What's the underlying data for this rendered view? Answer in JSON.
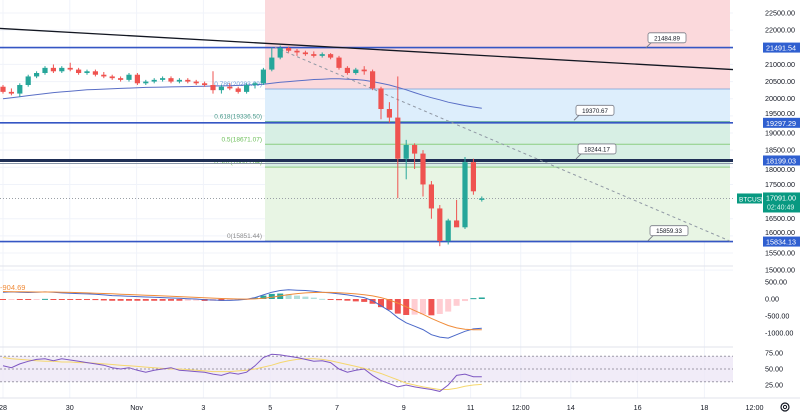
{
  "chart_data": {
    "type": "candlestick",
    "symbol": "BTCUSD",
    "last_price": "17091.00",
    "countdown": "02:40:49",
    "price_axis": {
      "ylim": [
        15500,
        22500
      ],
      "ticks": [
        "22500.00",
        "22000.00",
        "21000.00",
        "20500.00",
        "20000.00",
        "19500.00",
        "19000.00",
        "18500.00",
        "18000.00",
        "17500.00",
        "16500.00",
        "16000.00",
        "15500.00",
        "15000.00"
      ]
    },
    "time_axis": {
      "ticks": [
        {
          "label": "28",
          "t": "2022-10-28T00:00"
        },
        {
          "label": "30",
          "t": "2022-10-30T00:00"
        },
        {
          "label": "Nov",
          "t": "2022-11-01T00:00"
        },
        {
          "label": "3",
          "t": "2022-11-03T00:00"
        },
        {
          "label": "5",
          "t": "2022-11-05T00:00"
        },
        {
          "label": "7",
          "t": "2022-11-07T00:00"
        },
        {
          "label": "9",
          "t": "2022-11-09T00:00"
        },
        {
          "label": "11",
          "t": "2022-11-11T00:00"
        },
        {
          "label": "12:00",
          "t": "2022-11-12T12:00"
        },
        {
          "label": "14",
          "t": "2022-11-14T00:00"
        },
        {
          "label": "16",
          "t": "2022-11-16T00:00"
        },
        {
          "label": "18",
          "t": "2022-11-18T00:00"
        },
        {
          "label": "12:00",
          "t": "2022-11-19T12:00"
        }
      ]
    },
    "candles_ohlc": [
      [
        20350,
        20400,
        20150,
        20200
      ],
      [
        20200,
        20300,
        20100,
        20150
      ],
      [
        20150,
        20450,
        20050,
        20400
      ],
      [
        20400,
        20700,
        20350,
        20650
      ],
      [
        20650,
        20800,
        20600,
        20750
      ],
      [
        20750,
        20950,
        20700,
        20900
      ],
      [
        20900,
        21000,
        20750,
        20800
      ],
      [
        20800,
        20950,
        20750,
        20900
      ],
      [
        20900,
        21050,
        20800,
        20850
      ],
      [
        20850,
        20900,
        20700,
        20750
      ],
      [
        20750,
        20850,
        20700,
        20800
      ],
      [
        20800,
        20850,
        20650,
        20700
      ],
      [
        20700,
        20780,
        20600,
        20650
      ],
      [
        20650,
        20700,
        20550,
        20600
      ],
      [
        20600,
        20650,
        20500,
        20550
      ],
      [
        20550,
        20750,
        20500,
        20700
      ],
      [
        20700,
        20750,
        20400,
        20450
      ],
      [
        20450,
        20550,
        20400,
        20500
      ],
      [
        20500,
        20600,
        20450,
        20550
      ],
      [
        20550,
        20650,
        20500,
        20600
      ],
      [
        20600,
        20650,
        20450,
        20500
      ],
      [
        20500,
        20600,
        20450,
        20550
      ],
      [
        20550,
        20600,
        20450,
        20500
      ],
      [
        20500,
        20550,
        20400,
        20450
      ],
      [
        20450,
        20500,
        20350,
        20400
      ],
      [
        20400,
        20800,
        20150,
        20250
      ],
      [
        20250,
        20400,
        20150,
        20350
      ],
      [
        20350,
        20450,
        20250,
        20300
      ],
      [
        20300,
        20350,
        20150,
        20200
      ],
      [
        20200,
        20450,
        20150,
        20400
      ],
      [
        20400,
        20500,
        20300,
        20450
      ],
      [
        20450,
        20900,
        20400,
        20850
      ],
      [
        20850,
        21500,
        20800,
        21200
      ],
      [
        21200,
        21550,
        21150,
        21480
      ],
      [
        21480,
        21520,
        21350,
        21400
      ],
      [
        21400,
        21450,
        21250,
        21350
      ],
      [
        21350,
        21400,
        21250,
        21300
      ],
      [
        21300,
        21380,
        21200,
        21250
      ],
      [
        21250,
        21350,
        21200,
        21300
      ],
      [
        21300,
        21330,
        21150,
        21200
      ],
      [
        21200,
        21250,
        20850,
        20900
      ],
      [
        20900,
        20950,
        20700,
        20750
      ],
      [
        20750,
        20900,
        20700,
        20850
      ],
      [
        20850,
        20950,
        20700,
        20800
      ],
      [
        20800,
        20850,
        20250,
        20300
      ],
      [
        20300,
        20350,
        19400,
        19700
      ],
      [
        19700,
        19900,
        19300,
        19450
      ],
      [
        19450,
        20650,
        17100,
        18250
      ],
      [
        18250,
        18800,
        17650,
        18650
      ],
      [
        18650,
        18700,
        17950,
        18400
      ],
      [
        18400,
        18500,
        17150,
        17500
      ],
      [
        17500,
        17600,
        16500,
        16800
      ],
      [
        16800,
        16900,
        15700,
        15850
      ],
      [
        15850,
        16500,
        15750,
        16450
      ],
      [
        16450,
        17050,
        16300,
        16250
      ],
      [
        16250,
        18300,
        16200,
        18150
      ],
      [
        18150,
        18250,
        17200,
        17300
      ],
      [
        17050,
        17150,
        17000,
        17091
      ]
    ],
    "moving_average": [
      20000,
      20030,
      20060,
      20090,
      20120,
      20150,
      20180,
      20200,
      20220,
      20240,
      20260,
      20270,
      20280,
      20290,
      20300,
      20310,
      20320,
      20330,
      20335,
      20340,
      20345,
      20350,
      20355,
      20360,
      20365,
      20370,
      20375,
      20380,
      20390,
      20400,
      20410,
      20420,
      20450,
      20480,
      20500,
      20520,
      20540,
      20560,
      20570,
      20580,
      20580,
      20570,
      20560,
      20540,
      20500,
      20450,
      20400,
      20330,
      20260,
      20180,
      20100,
      20030,
      19970,
      19900,
      19850,
      19800,
      19760,
      19720
    ],
    "horizontal_levels": [
      {
        "price": 21491.54,
        "label": "21491.54"
      },
      {
        "price": 19297.29,
        "label": "19297.29"
      },
      {
        "price": 18199.03,
        "label": "18199.03"
      },
      {
        "price": 15834.13,
        "label": "15834.13"
      }
    ],
    "callouts": [
      {
        "price": 21484.89,
        "label": "21484.89"
      },
      {
        "price": 19370.67,
        "label": "19370.67"
      },
      {
        "price": 18244.17,
        "label": "18244.17"
      },
      {
        "price": 15859.33,
        "label": "15859.33"
      }
    ],
    "fibonacci": [
      {
        "ratio": 0.786,
        "price": 20283.89,
        "label": "0.786(20283.89)"
      },
      {
        "ratio": 0.618,
        "price": 19336.5,
        "label": "0.618(19336.50)"
      },
      {
        "ratio": 0.5,
        "price": 18671.07,
        "label": "0.5(18671.07)"
      },
      {
        "ratio": 0.382,
        "price": 18005.64,
        "label": "0.382(18005.64)"
      },
      {
        "ratio": 0,
        "price": 15851.44,
        "label": "0(15851.44)"
      }
    ],
    "trendline": {
      "from_price": 22050,
      "to_price": 20850
    },
    "dashed_line": {
      "from_price": 21500,
      "to_price": 15850
    },
    "macd": {
      "value_label": "-904.69",
      "ylim": [
        -1200,
        600
      ],
      "ticks": [
        "500.00",
        "0.00",
        "-500.00",
        "-1000.00"
      ],
      "macd": [
        200,
        210,
        200,
        190,
        200,
        210,
        200,
        180,
        170,
        160,
        150,
        140,
        120,
        100,
        90,
        80,
        70,
        60,
        50,
        40,
        30,
        20,
        10,
        0,
        -20,
        -30,
        -40,
        -40,
        -30,
        -10,
        40,
        120,
        200,
        250,
        270,
        260,
        250,
        230,
        200,
        180,
        150,
        120,
        80,
        40,
        -50,
        -200,
        -350,
        -550,
        -700,
        -800,
        -900,
        -1050,
        -1120,
        -1150,
        -1050,
        -950,
        -880,
        -860
      ],
      "signal": [
        220,
        215,
        212,
        208,
        206,
        206,
        205,
        200,
        195,
        188,
        180,
        172,
        163,
        152,
        142,
        132,
        122,
        112,
        102,
        92,
        82,
        72,
        60,
        48,
        36,
        25,
        15,
        7,
        1,
        -3,
        2,
        20,
        50,
        90,
        130,
        160,
        180,
        190,
        195,
        193,
        185,
        170,
        150,
        125,
        90,
        40,
        -30,
        -120,
        -230,
        -340,
        -450,
        -570,
        -680,
        -780,
        -850,
        -890,
        -905,
        -904.69
      ]
    },
    "rsi": {
      "ylim": [
        10,
        85
      ],
      "ticks": [
        "75.00",
        "50.00",
        "25.00"
      ],
      "band": [
        30,
        70
      ],
      "rsi": [
        55,
        52,
        58,
        62,
        65,
        66,
        63,
        66,
        64,
        62,
        60,
        58,
        56,
        52,
        50,
        52,
        48,
        45,
        48,
        50,
        52,
        48,
        47,
        46,
        45,
        42,
        40,
        44,
        42,
        45,
        55,
        68,
        73,
        72,
        70,
        68,
        65,
        62,
        63,
        60,
        50,
        45,
        48,
        50,
        40,
        32,
        27,
        22,
        25,
        22,
        20,
        18,
        15,
        25,
        40,
        42,
        38,
        38
      ],
      "rsi_ma": [
        68,
        66,
        65,
        64,
        63,
        62,
        62,
        61,
        61,
        60,
        60,
        59,
        58,
        57,
        56,
        55,
        54,
        53,
        52,
        51,
        50,
        50,
        49,
        48,
        47,
        46,
        46,
        46,
        47,
        48,
        50,
        53,
        56,
        60,
        63,
        65,
        66,
        66,
        65,
        63,
        60,
        57,
        54,
        51,
        47,
        43,
        38,
        33,
        28,
        25,
        22,
        20,
        18,
        18,
        20,
        23,
        25,
        26
      ]
    },
    "colors": {
      "up": "#26a69a",
      "down": "#ef5350",
      "level_line": "#3556c4",
      "trendline": "#131722",
      "ma": "#5a6fc6",
      "macd": "#4a68c8",
      "signal": "#f08c3a",
      "rsi": "#7e57c2",
      "rsi_ma": "#f5d76e",
      "fib_red": "#fbd9dc",
      "fib_blue": "#ddeefc",
      "fib_teal": "#d7efe4",
      "fib_green": "#e8f5e4"
    }
  }
}
